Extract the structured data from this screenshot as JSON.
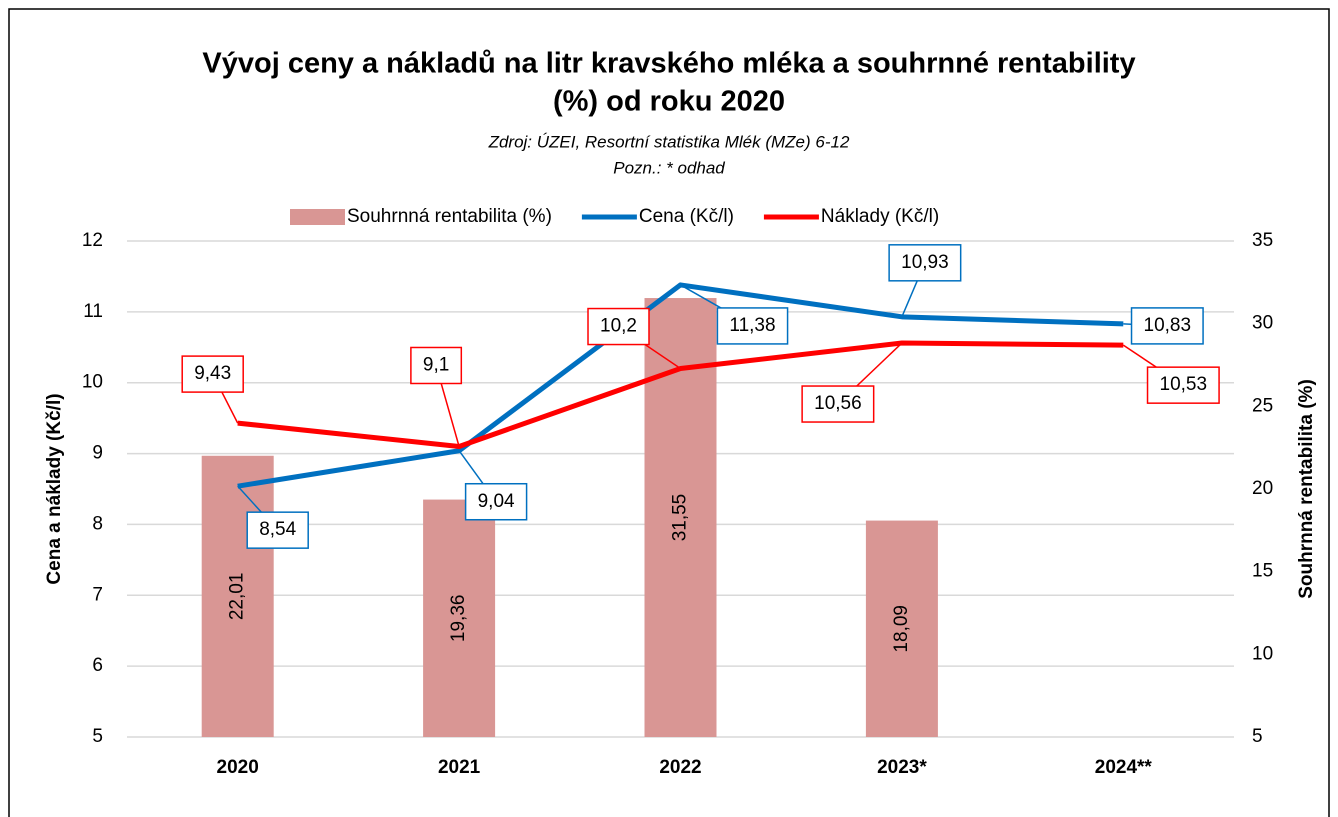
{
  "chart_data": {
    "type": "bar-line",
    "title": [
      "Vývoj ceny a nákladů na litr kravského mléka a souhrnné rentability",
      "(%) od roku 2020"
    ],
    "subtitle": "Zdroj: ÚZEI, Resortní statistika Mlék (MZe) 6-12",
    "note": "Pozn.: * odhad",
    "ylabel": "Cena a náklady (Kč/l)",
    "y2label": "Souhrnná rentabilita (%)",
    "categories": [
      "2020",
      "2021",
      "2022",
      "2023*",
      "2024**"
    ],
    "ylim": [
      5,
      12
    ],
    "yticks": [
      5,
      6,
      7,
      8,
      9,
      10,
      11,
      12
    ],
    "y2lim": [
      5,
      35
    ],
    "y2ticks": [
      5,
      10,
      15,
      20,
      25,
      30,
      35
    ],
    "grid": true,
    "legend": "top",
    "series": [
      {
        "name": "Souhrnná rentabilita (%)",
        "type": "bar",
        "axis": "y2",
        "color": "#d99694",
        "values": [
          22.01,
          19.36,
          31.55,
          18.09,
          null
        ],
        "value_labels": [
          "22,01",
          "19,36",
          "31,55",
          "18,09",
          null
        ]
      },
      {
        "name": "Cena (Kč/l)",
        "type": "line",
        "color": "#0070c0",
        "values": [
          8.54,
          9.04,
          11.38,
          10.93,
          10.83
        ],
        "value_labels": [
          "8,54",
          "9,04",
          "11,38",
          "10,93",
          "10,83"
        ]
      },
      {
        "name": "Náklady (Kč/l)",
        "type": "line",
        "color": "#ff0000",
        "values": [
          9.43,
          9.1,
          10.2,
          10.56,
          10.53
        ],
        "value_labels": [
          "9,43",
          "9,1",
          "10,2",
          "10,56",
          "10,53"
        ]
      }
    ]
  }
}
